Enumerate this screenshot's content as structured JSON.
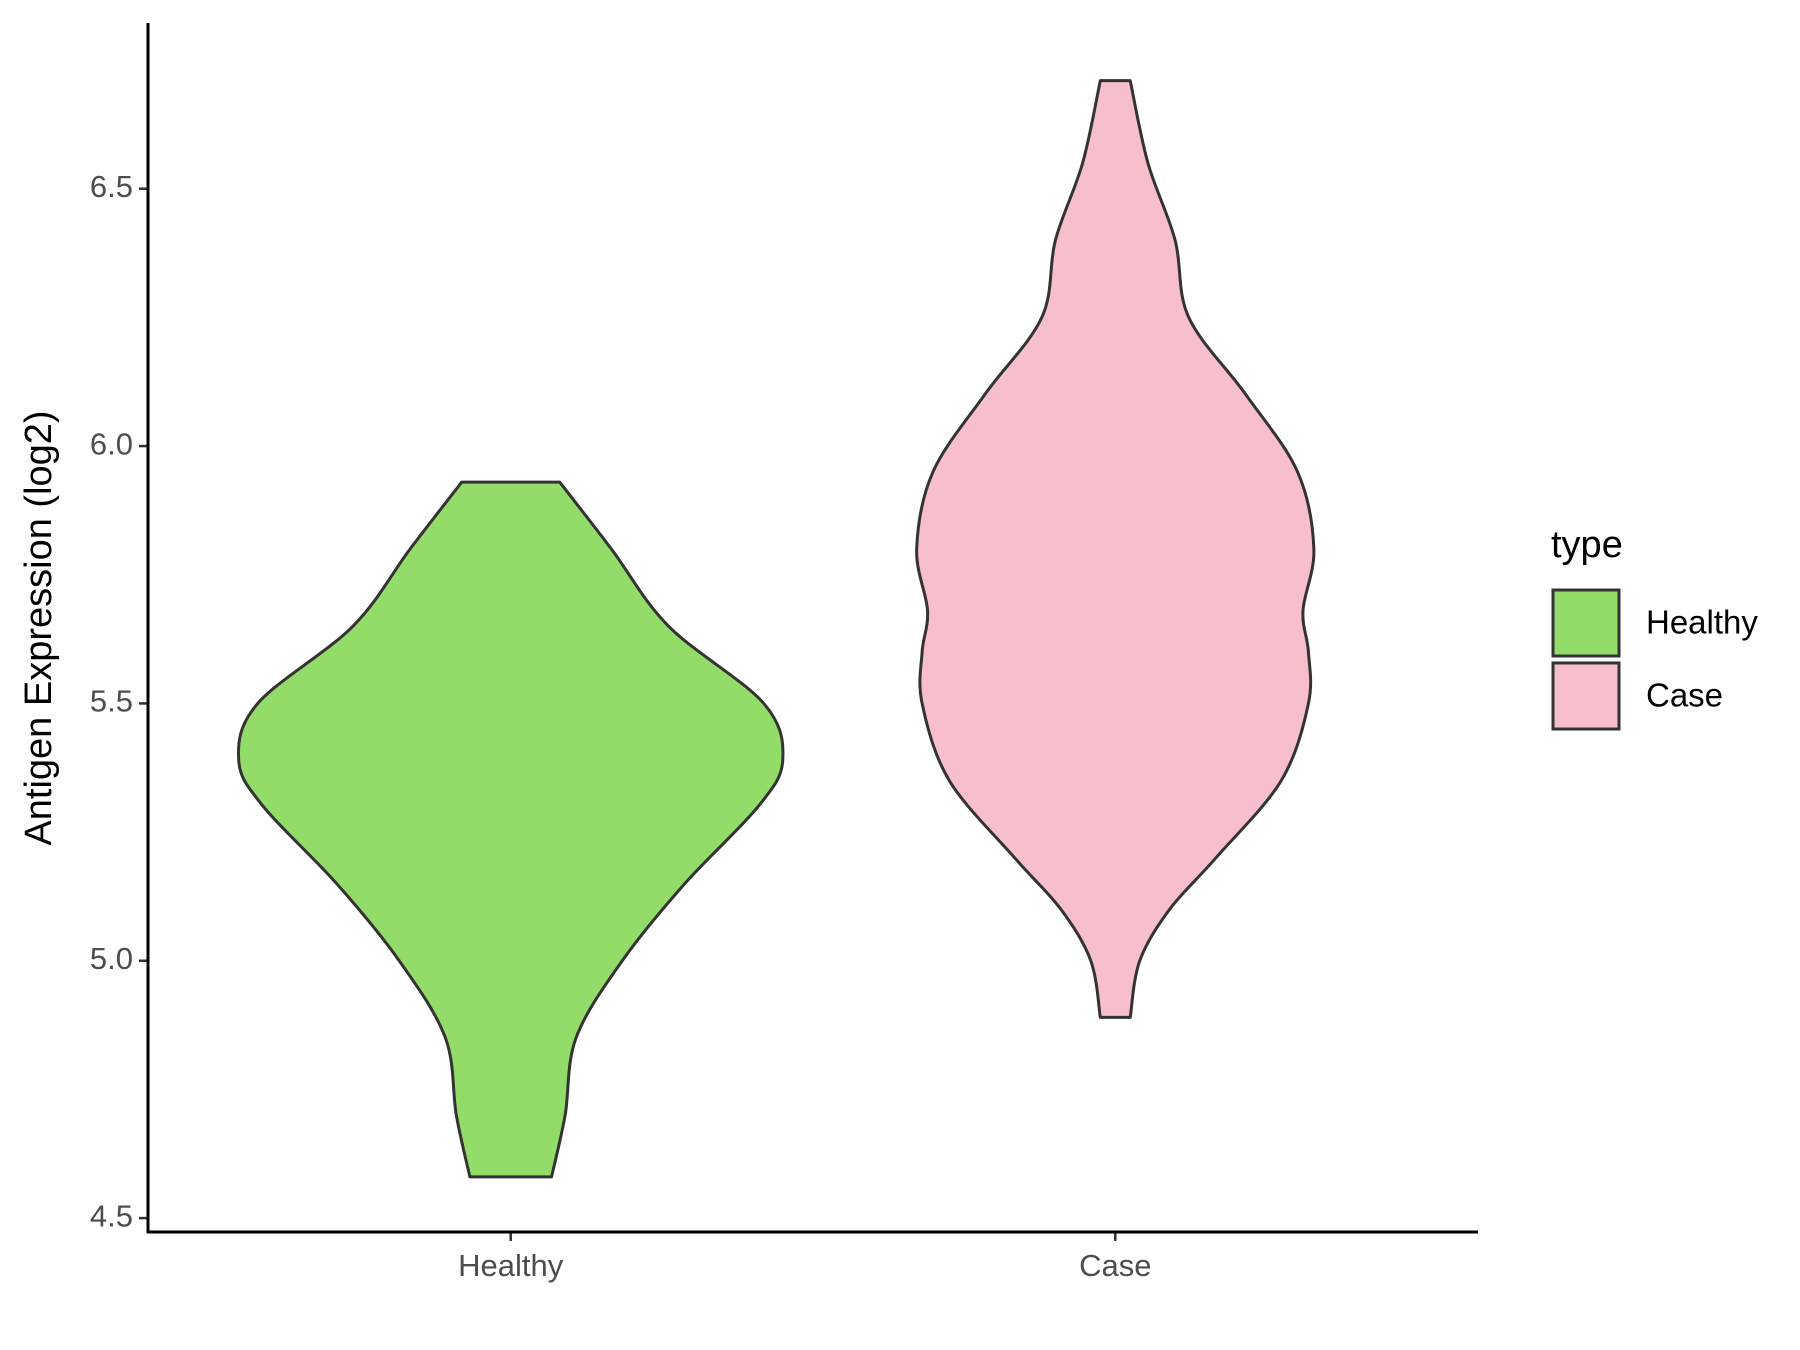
{
  "chart_data": {
    "type": "violin",
    "ylabel": "Antigen Expression (log2)",
    "categories": [
      "Healthy",
      "Case"
    ],
    "ylim": [
      4.473,
      6.822
    ],
    "yticks": [
      {
        "value": 4.5,
        "label": "4.5"
      },
      {
        "value": 5,
        "label": "5.0"
      },
      5.5,
      {
        "value": 6,
        "label": "6.0"
      },
      6.5
    ],
    "legend_title": "type",
    "legend": "right",
    "series": [
      {
        "name": "Healthy",
        "color": "#93dc6a",
        "y": [
          4.58,
          4.7,
          4.85,
          5.0,
          5.15,
          5.3,
          5.39,
          5.5,
          5.65,
          5.8,
          5.93
        ],
        "width": [
          0.15,
          0.2,
          0.24,
          0.41,
          0.64,
          0.91,
          1.0,
          0.93,
          0.58,
          0.37,
          0.18
        ]
      },
      {
        "name": "Case",
        "color": "#f7bfcb",
        "y": [
          4.89,
          5.0,
          5.1,
          5.2,
          5.35,
          5.5,
          5.6,
          5.68,
          5.8,
          5.95,
          6.1,
          6.25,
          6.4,
          6.55,
          6.71
        ],
        "width": [
          0.055,
          0.09,
          0.2,
          0.37,
          0.61,
          0.71,
          0.71,
          0.69,
          0.73,
          0.67,
          0.48,
          0.27,
          0.22,
          0.12,
          0.055
        ]
      }
    ]
  }
}
